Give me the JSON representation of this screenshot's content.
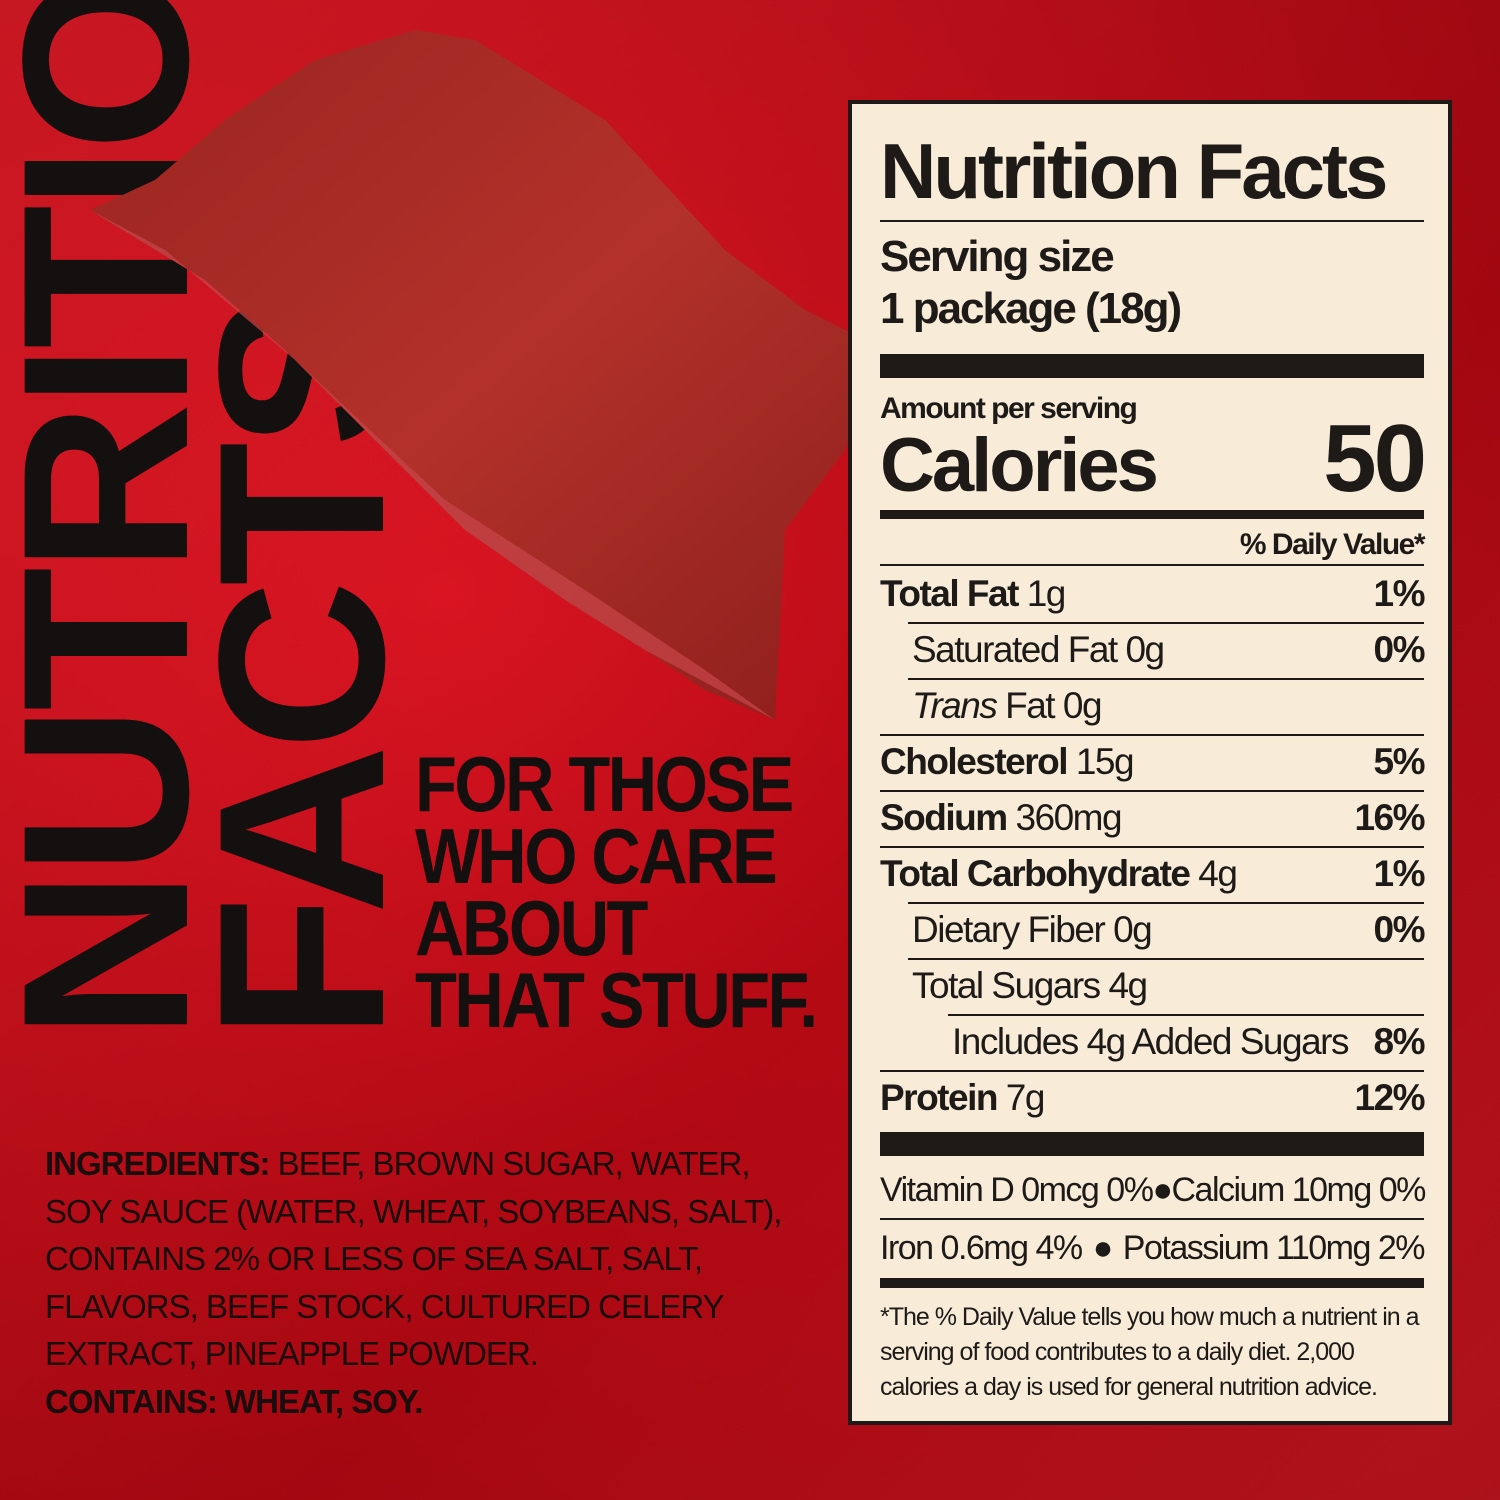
{
  "background": {
    "color": "#d10d19"
  },
  "headline": {
    "line1": "NUTRITION",
    "line2": "FACTS"
  },
  "tagline": [
    "FOR THOSE",
    "WHO CARE",
    "ABOUT",
    "THAT STUFF."
  ],
  "ingredients": {
    "label": "INGREDIENTS:",
    "text": [
      " BEEF, BROWN SUGAR, WATER,",
      "SOY SAUCE (WATER, WHEAT, SOYBEANS, SALT),",
      "CONTAINS 2% OR LESS OF SEA SALT, SALT,",
      "FLAVORS, BEEF STOCK, CULTURED CELERY",
      "EXTRACT, PINEAPPLE POWDER."
    ],
    "contains": "CONTAINS: WHEAT, SOY."
  },
  "label": {
    "title": "Nutrition Facts",
    "serving_label": "Serving size",
    "serving_value": "1 package (18g)",
    "amount_per_serving": "Amount per serving",
    "calories_label": "Calories",
    "calories_value": "50",
    "dv_header": "% Daily Value*",
    "rows": [
      {
        "name": "Total Fat",
        "amount": "1g",
        "dv": "1%"
      },
      {
        "name": "Saturated Fat",
        "amount": "0g",
        "dv": "0%"
      },
      {
        "name": "Trans",
        "name2": "Fat",
        "amount": "0g",
        "dv": ""
      },
      {
        "name": "Cholesterol",
        "amount": "15g",
        "dv": "5%"
      },
      {
        "name": "Sodium",
        "amount": "360mg",
        "dv": "16%"
      },
      {
        "name": "Total Carbohydrate",
        "amount": "4g",
        "dv": "1%"
      },
      {
        "name": "Dietary Fiber",
        "amount": "0g",
        "dv": "0%"
      },
      {
        "name": "Total Sugars",
        "amount": "4g",
        "dv": ""
      },
      {
        "name": "Includes 4g Added Sugars",
        "amount": "",
        "dv": "8%"
      },
      {
        "name": "Protein",
        "amount": "7g",
        "dv": "12%"
      }
    ],
    "vitamins": [
      [
        "Vitamin D 0mcg 0%",
        "Calcium 10mg 0%"
      ],
      [
        "Iron 0.6mg 4%",
        "Potassium 110mg 2%"
      ]
    ],
    "footnote": "*The % Daily Value tells you how much a nutrient in a serving of food contributes to a daily diet. 2,000 calories a day is used for general nutrition advice."
  }
}
